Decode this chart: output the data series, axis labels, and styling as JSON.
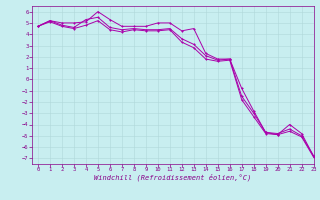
{
  "xlabel": "Windchill (Refroidissement éolien,°C)",
  "bg_color": "#c8eef0",
  "grid_color": "#b0d8da",
  "line_color": "#aa00aa",
  "xlim": [
    -0.5,
    23
  ],
  "ylim": [
    -7.5,
    6.5
  ],
  "xticks": [
    0,
    1,
    2,
    3,
    4,
    5,
    6,
    7,
    8,
    9,
    10,
    11,
    12,
    13,
    14,
    15,
    16,
    17,
    18,
    19,
    20,
    21,
    22,
    23
  ],
  "yticks": [
    -7,
    -6,
    -5,
    -4,
    -3,
    -2,
    -1,
    0,
    1,
    2,
    3,
    4,
    5,
    6
  ],
  "series1_x": [
    0,
    1,
    2,
    3,
    4,
    5,
    6,
    7,
    8,
    9,
    10,
    11,
    12,
    13,
    14,
    15,
    16,
    17,
    18,
    19,
    20,
    21,
    22,
    23
  ],
  "series1_y": [
    4.7,
    5.2,
    5.0,
    5.0,
    5.1,
    6.0,
    5.3,
    4.7,
    4.7,
    4.7,
    5.0,
    5.0,
    4.3,
    4.5,
    2.3,
    1.8,
    1.8,
    -0.8,
    -2.8,
    -4.7,
    -4.9,
    -4.0,
    -4.8,
    -6.8
  ],
  "series2_x": [
    0,
    1,
    2,
    3,
    4,
    5,
    6,
    7,
    8,
    9,
    10,
    11,
    12,
    13,
    14,
    15,
    16,
    17,
    18,
    19,
    20,
    21,
    22,
    23
  ],
  "series2_y": [
    4.7,
    5.2,
    4.8,
    4.6,
    5.3,
    5.5,
    4.6,
    4.4,
    4.5,
    4.4,
    4.4,
    4.5,
    3.6,
    3.1,
    2.1,
    1.7,
    1.8,
    -1.5,
    -3.0,
    -4.7,
    -4.8,
    -4.4,
    -5.0,
    -6.8
  ],
  "series3_x": [
    0,
    1,
    2,
    3,
    4,
    5,
    6,
    7,
    8,
    9,
    10,
    11,
    12,
    13,
    14,
    15,
    16,
    17,
    18,
    19,
    20,
    21,
    22,
    23
  ],
  "series3_y": [
    4.7,
    5.1,
    4.7,
    4.5,
    4.8,
    5.2,
    4.4,
    4.2,
    4.4,
    4.3,
    4.3,
    4.4,
    3.3,
    2.8,
    1.8,
    1.6,
    1.7,
    -1.8,
    -3.3,
    -4.8,
    -4.9,
    -4.6,
    -5.1,
    -6.9
  ],
  "tick_color": "#880088",
  "tick_fontsize": 4.0,
  "xlabel_fontsize": 5.0,
  "lw": 0.7,
  "ms": 1.5
}
